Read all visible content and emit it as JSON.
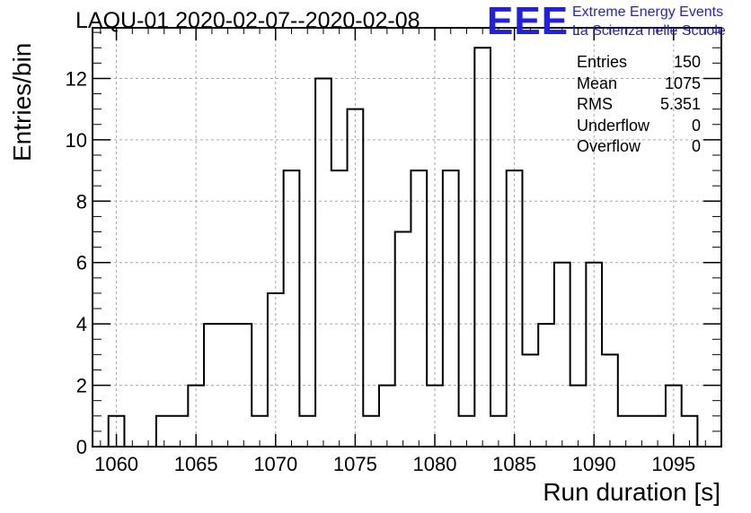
{
  "chart_data": {
    "type": "bar",
    "title": "LAQU-01 2020-02-07--2020-02-08",
    "xlabel": "Run duration [s]",
    "ylabel": "Entries/bin",
    "xlim": [
      1058.5,
      1098
    ],
    "ylim": [
      0,
      13.65
    ],
    "bin_width": 1,
    "grid": true,
    "x_ticks": [
      1060,
      1065,
      1070,
      1075,
      1080,
      1085,
      1090,
      1095
    ],
    "y_ticks": [
      0,
      2,
      4,
      6,
      8,
      10,
      12
    ],
    "bins": [
      {
        "x": 1060,
        "v": 1
      },
      {
        "x": 1063,
        "v": 1
      },
      {
        "x": 1064,
        "v": 1
      },
      {
        "x": 1065,
        "v": 2
      },
      {
        "x": 1066,
        "v": 4
      },
      {
        "x": 1067,
        "v": 4
      },
      {
        "x": 1068,
        "v": 4
      },
      {
        "x": 1069,
        "v": 1
      },
      {
        "x": 1070,
        "v": 5
      },
      {
        "x": 1071,
        "v": 9
      },
      {
        "x": 1072,
        "v": 1
      },
      {
        "x": 1073,
        "v": 12
      },
      {
        "x": 1074,
        "v": 9
      },
      {
        "x": 1075,
        "v": 11
      },
      {
        "x": 1076,
        "v": 1
      },
      {
        "x": 1077,
        "v": 2
      },
      {
        "x": 1078,
        "v": 7
      },
      {
        "x": 1079,
        "v": 9
      },
      {
        "x": 1080,
        "v": 2
      },
      {
        "x": 1081,
        "v": 9
      },
      {
        "x": 1082,
        "v": 1
      },
      {
        "x": 1083,
        "v": 13
      },
      {
        "x": 1084,
        "v": 1
      },
      {
        "x": 1085,
        "v": 9
      },
      {
        "x": 1086,
        "v": 3
      },
      {
        "x": 1087,
        "v": 4
      },
      {
        "x": 1088,
        "v": 6
      },
      {
        "x": 1089,
        "v": 2
      },
      {
        "x": 1090,
        "v": 6
      },
      {
        "x": 1091,
        "v": 3
      },
      {
        "x": 1092,
        "v": 1
      },
      {
        "x": 1093,
        "v": 1
      },
      {
        "x": 1094,
        "v": 1
      },
      {
        "x": 1095,
        "v": 2
      },
      {
        "x": 1096,
        "v": 1
      }
    ],
    "stats": [
      {
        "label": "Entries",
        "value": "150"
      },
      {
        "label": "Mean",
        "value": "1075"
      },
      {
        "label": "RMS",
        "value": "5.351"
      },
      {
        "label": "Underflow",
        "value": "0"
      },
      {
        "label": "Overflow",
        "value": "0"
      }
    ]
  },
  "logo": {
    "mark": "EEE",
    "line1": "Extreme Energy Events",
    "line2": "La Scienza nelle Scuole",
    "color": "#1f1fe8"
  }
}
